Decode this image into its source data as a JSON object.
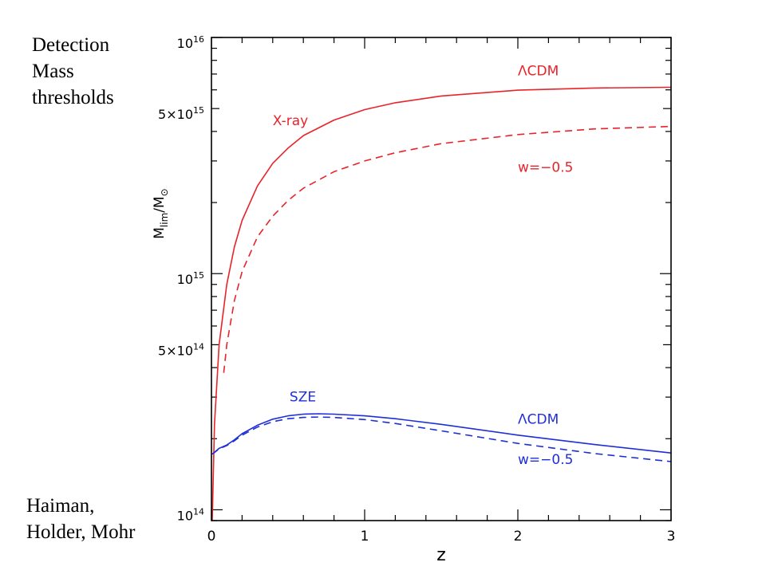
{
  "side_text": {
    "top_lines": [
      "Detection",
      "Mass",
      "thresholds"
    ],
    "bottom_lines": [
      "Haiman,",
      "Holder, Mohr"
    ]
  },
  "chart_data": {
    "type": "line",
    "xlabel": "z",
    "ylabel": "M",
    "ylabel_sub": "lim",
    "ylabel_tail": "/M",
    "ylabel_sun": "⊙",
    "xlim": [
      0,
      3
    ],
    "ylim": [
      90000000000000,
      10000000000000000
    ],
    "y_scale": "log",
    "x_ticks": [
      {
        "value": 0,
        "label": "0"
      },
      {
        "value": 1,
        "label": "1"
      },
      {
        "value": 2,
        "label": "2"
      },
      {
        "value": 3,
        "label": "3"
      }
    ],
    "y_ticks": [
      {
        "value": 100000000000000,
        "base": "10",
        "exp": "14"
      },
      {
        "value": 500000000000000,
        "base": "5×10",
        "exp": "14"
      },
      {
        "value": 1000000000000000,
        "base": "10",
        "exp": "15"
      },
      {
        "value": 5000000000000000,
        "base": "5×10",
        "exp": "15"
      },
      {
        "value": 10000000000000000,
        "base": "10",
        "exp": "16"
      }
    ],
    "series": [
      {
        "group": "X-ray",
        "model": "ΛCDM",
        "color": "#e8232a",
        "dash": "solid",
        "x": [
          0.005,
          0.02,
          0.05,
          0.1,
          0.15,
          0.2,
          0.3,
          0.4,
          0.5,
          0.6,
          0.8,
          1.0,
          1.2,
          1.5,
          2.0,
          2.5,
          3.0
        ],
        "y": [
          90000000000000,
          230000000000000,
          500000000000000,
          900000000000000,
          1300000000000000,
          1680000000000000,
          2350000000000000,
          2930000000000000,
          3400000000000000,
          3840000000000000,
          4470000000000000,
          4950000000000000,
          5290000000000000,
          5650000000000000,
          5980000000000000,
          6110000000000000,
          6150000000000000
        ]
      },
      {
        "group": "X-ray",
        "model": "w=−0.5",
        "color": "#e8232a",
        "dash": "dashed",
        "x": [
          0.08,
          0.1,
          0.15,
          0.2,
          0.3,
          0.4,
          0.5,
          0.6,
          0.8,
          1.0,
          1.2,
          1.5,
          2.0,
          2.5,
          3.0
        ],
        "y": [
          380000000000000,
          500000000000000,
          770000000000000,
          1020000000000000,
          1430000000000000,
          1750000000000000,
          2040000000000000,
          2300000000000000,
          2700000000000000,
          3000000000000000,
          3250000000000000,
          3550000000000000,
          3880000000000000,
          4100000000000000,
          4200000000000000
        ]
      },
      {
        "group": "SZE",
        "model": "ΛCDM",
        "color": "#1f2fd8",
        "dash": "solid",
        "x": [
          0.005,
          0.05,
          0.1,
          0.15,
          0.2,
          0.3,
          0.4,
          0.5,
          0.6,
          0.7,
          0.8,
          1.0,
          1.2,
          1.5,
          2.0,
          2.5,
          3.0
        ],
        "y": [
          172000000000000,
          182000000000000,
          188000000000000,
          198000000000000,
          210000000000000,
          228000000000000,
          242000000000000,
          250000000000000,
          254000000000000,
          255000000000000,
          254000000000000,
          250000000000000,
          243000000000000,
          230000000000000,
          207000000000000,
          189000000000000,
          174000000000000
        ]
      },
      {
        "group": "SZE",
        "model": "w=−0.5",
        "color": "#1f2fd8",
        "dash": "dashed",
        "x": [
          0.005,
          0.05,
          0.1,
          0.15,
          0.2,
          0.3,
          0.4,
          0.5,
          0.6,
          0.7,
          0.8,
          1.0,
          1.2,
          1.5,
          2.0,
          2.5,
          3.0
        ],
        "y": [
          172000000000000,
          181000000000000,
          187000000000000,
          196000000000000,
          207000000000000,
          224000000000000,
          236000000000000,
          243000000000000,
          246000000000000,
          247000000000000,
          246000000000000,
          241000000000000,
          232000000000000,
          216000000000000,
          191000000000000,
          173000000000000,
          160000000000000
        ]
      }
    ],
    "annotations": [
      {
        "id": "xray-lcdm",
        "text": "ΛCDM",
        "color": "#e8232a",
        "x": 2.0,
        "y": 6900000000000000
      },
      {
        "id": "xray",
        "text": "X-ray",
        "color": "#e8232a",
        "x": 0.4,
        "y": 4250000000000000
      },
      {
        "id": "xray-w",
        "text": "w=−0.5",
        "color": "#e8232a",
        "x": 2.0,
        "y": 2700000000000000
      },
      {
        "id": "sze",
        "text": "SZE",
        "color": "#1f2fd8",
        "x": 0.51,
        "y": 288000000000000
      },
      {
        "id": "sze-lcdm",
        "text": "ΛCDM",
        "color": "#1f2fd8",
        "x": 2.0,
        "y": 231000000000000
      },
      {
        "id": "sze-w",
        "text": "w=−0.5",
        "color": "#1f2fd8",
        "x": 2.0,
        "y": 156000000000000
      }
    ]
  }
}
